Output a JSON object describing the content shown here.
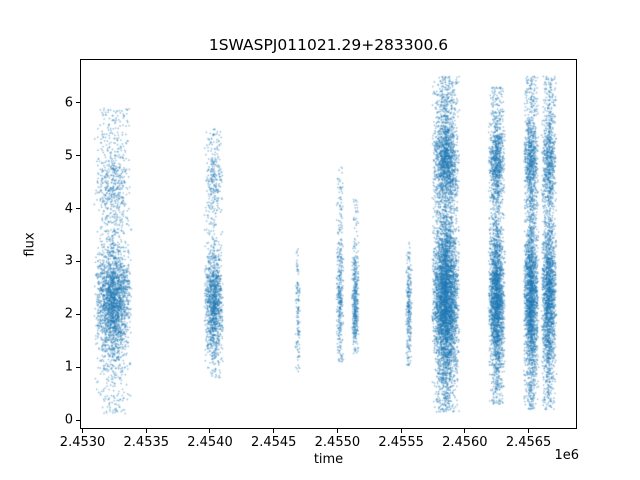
{
  "chart_data": {
    "type": "scatter",
    "title": "1SWASPJ011021.29+283300.6",
    "xlabel": "time",
    "ylabel": "flux",
    "x_offset_label": "1e6",
    "point_color": "#1f77b4",
    "point_alpha": 0.45,
    "xlim": [
      2.45298,
      2.45688
    ],
    "ylim": [
      -0.17,
      6.83
    ],
    "x_unit_scale": 1000000,
    "xticks": [
      {
        "label": "2.4530",
        "value": 2.453
      },
      {
        "label": "2.4535",
        "value": 2.4535
      },
      {
        "label": "2.4540",
        "value": 2.454
      },
      {
        "label": "2.4545",
        "value": 2.4545
      },
      {
        "label": "2.4550",
        "value": 2.455
      },
      {
        "label": "2.4555",
        "value": 2.4555
      },
      {
        "label": "2.4560",
        "value": 2.456
      },
      {
        "label": "2.4565",
        "value": 2.4565
      }
    ],
    "yticks": [
      {
        "label": "0",
        "value": 0
      },
      {
        "label": "1",
        "value": 1
      },
      {
        "label": "2",
        "value": 2
      },
      {
        "label": "3",
        "value": 3
      },
      {
        "label": "4",
        "value": 4
      },
      {
        "label": "5",
        "value": 5
      },
      {
        "label": "6",
        "value": 6
      }
    ],
    "clusters": [
      {
        "x_center": 2.45324,
        "x_halfwidth": 0.00015,
        "n": 3000,
        "flux_mean": 2.25,
        "flux_sigma": 0.5,
        "frac2": 0.1,
        "flux_mean2": 4.4,
        "flux_sigma2": 0.35,
        "tail_frac": 0.26,
        "flux_min": 0.12,
        "flux_max": 5.9
      },
      {
        "x_center": 2.45403,
        "x_halfwidth": 7.5e-05,
        "n": 1500,
        "flux_mean": 2.2,
        "flux_sigma": 0.45,
        "frac2": 0.08,
        "flux_mean2": 4.6,
        "flux_sigma2": 0.3,
        "tail_frac": 0.26,
        "flux_min": 0.8,
        "flux_max": 5.5
      },
      {
        "x_center": 2.45469,
        "x_halfwidth": 2e-05,
        "n": 130,
        "flux_mean": 2.0,
        "flux_sigma": 0.55,
        "frac2": 0,
        "flux_mean2": 0,
        "flux_sigma2": 1,
        "tail_frac": 0.35,
        "flux_min": 0.8,
        "flux_max": 3.3
      },
      {
        "x_center": 2.45502,
        "x_halfwidth": 3e-05,
        "n": 380,
        "flux_mean": 2.3,
        "flux_sigma": 0.55,
        "frac2": 0.05,
        "flux_mean2": 4.2,
        "flux_sigma2": 0.3,
        "tail_frac": 0.3,
        "flux_min": 1.1,
        "flux_max": 4.8
      },
      {
        "x_center": 2.45514,
        "x_halfwidth": 3e-05,
        "n": 430,
        "flux_mean": 2.2,
        "flux_sigma": 0.45,
        "frac2": 0,
        "flux_mean2": 0,
        "flux_sigma2": 1,
        "tail_frac": 0.25,
        "flux_min": 1.25,
        "flux_max": 4.2
      },
      {
        "x_center": 2.45556,
        "x_halfwidth": 2.5e-05,
        "n": 270,
        "flux_mean": 2.1,
        "flux_sigma": 0.5,
        "frac2": 0,
        "flux_mean2": 0,
        "flux_sigma2": 1,
        "tail_frac": 0.3,
        "flux_min": 1.0,
        "flux_max": 3.4
      },
      {
        "x_center": 2.45585,
        "x_halfwidth": 0.00011,
        "n": 6000,
        "flux_mean": 2.3,
        "flux_sigma": 0.7,
        "frac2": 0.18,
        "flux_mean2": 4.9,
        "flux_sigma2": 0.4,
        "tail_frac": 0.3,
        "flux_min": 0.15,
        "flux_max": 6.5
      },
      {
        "x_center": 2.45625,
        "x_halfwidth": 6.7e-05,
        "n": 3200,
        "flux_mean": 2.3,
        "flux_sigma": 0.65,
        "frac2": 0.16,
        "flux_mean2": 4.9,
        "flux_sigma2": 0.35,
        "tail_frac": 0.3,
        "flux_min": 0.3,
        "flux_max": 6.3
      },
      {
        "x_center": 2.45652,
        "x_halfwidth": 6e-05,
        "n": 3000,
        "flux_mean": 2.3,
        "flux_sigma": 0.7,
        "frac2": 0.17,
        "flux_mean2": 4.9,
        "flux_sigma2": 0.4,
        "tail_frac": 0.3,
        "flux_min": 0.2,
        "flux_max": 6.5
      },
      {
        "x_center": 2.45666,
        "x_halfwidth": 6e-05,
        "n": 2600,
        "flux_mean": 2.3,
        "flux_sigma": 0.7,
        "frac2": 0.17,
        "flux_mean2": 4.9,
        "flux_sigma2": 0.4,
        "tail_frac": 0.3,
        "flux_min": 0.2,
        "flux_max": 6.5
      }
    ]
  }
}
